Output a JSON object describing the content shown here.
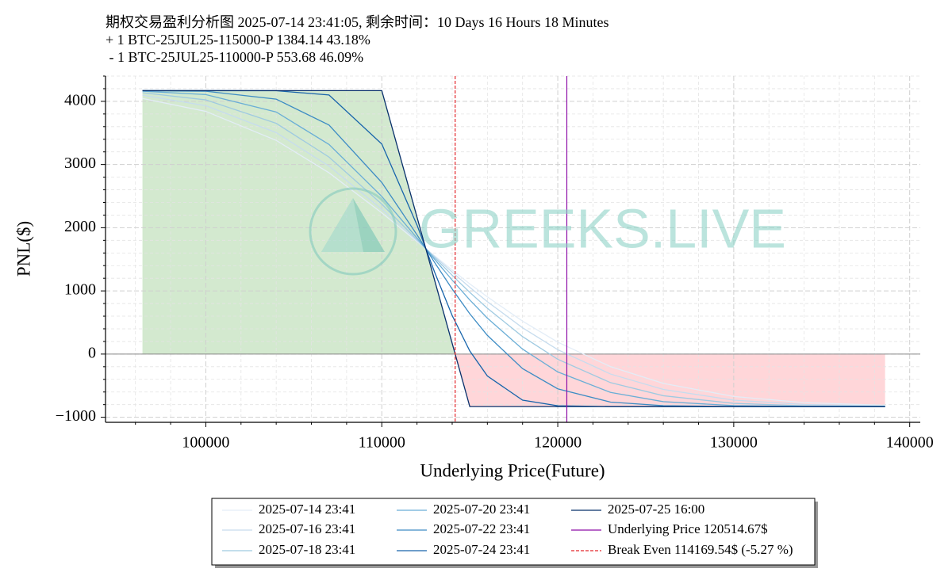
{
  "chart_data": {
    "type": "line",
    "title": [
      "期权交易盈利分析图 2025-07-14 23:41:05, 剩余时间：10 Days 16 Hours 18 Minutes",
      "+ 1 BTC-25JUL25-115000-P 1384.14 43.18%",
      " - 1 BTC-25JUL25-110000-P 553.68 46.09%"
    ],
    "x_label": "Underlying Price(Future)",
    "y_label": "PNL($)",
    "watermark": "GREEKS.LIVE",
    "x": [
      96400,
      100000,
      104000,
      107000,
      110000,
      112000,
      113000,
      114000,
      115000,
      116000,
      118000,
      120000,
      123000,
      126000,
      130000,
      134000,
      138600
    ],
    "series": [
      {
        "name": "2025-07-14 23:41",
        "color": "#e3edf7",
        "values": [
          4046,
          3841,
          3382,
          2869,
          2235,
          1781,
          1556,
          1331,
          1111,
          906,
          521,
          189,
          -199,
          -464,
          -671,
          -768,
          -811
        ]
      },
      {
        "name": "2025-07-16 23:41",
        "color": "#c6dcee",
        "values": [
          4098,
          3931,
          3505,
          2975,
          2292,
          1796,
          1544,
          1297,
          1056,
          829,
          416,
          70,
          -316,
          -560,
          -729,
          -797,
          -822
        ]
      },
      {
        "name": "2025-07-18 23:41",
        "color": "#9fcae1",
        "values": [
          4137,
          4023,
          3652,
          3118,
          2373,
          1811,
          1527,
          1247,
          977,
          726,
          277,
          -82,
          -452,
          -659,
          -780,
          -818,
          -828
        ]
      },
      {
        "name": "2025-07-20 23:41",
        "color": "#6aaed6",
        "values": [
          4161,
          4107,
          3831,
          3318,
          2495,
          1837,
          1501,
          1171,
          857,
          569,
          79,
          -282,
          -607,
          -753,
          -815,
          -828,
          -830
        ]
      },
      {
        "name": "2025-07-22 23:41",
        "color": "#3d8cc4",
        "values": [
          4169,
          4160,
          4035,
          3625,
          2716,
          1888,
          1451,
          1030,
          638,
          296,
          -230,
          -550,
          -760,
          -817,
          -829,
          -830,
          -830
        ]
      },
      {
        "name": "2025-07-24 23:41",
        "color": "#1764ab",
        "values": [
          4169,
          4169,
          4168,
          4101,
          3325,
          2043,
          1298,
          610,
          50,
          -347,
          -729,
          -818,
          -830,
          -830,
          -830,
          -830,
          -830
        ]
      },
      {
        "name": "2025-07-25 16:00",
        "color": "#08306b",
        "profit_fill": "#d3e9cf",
        "loss_fill": "#ffd6d9",
        "values": [
          4169.54,
          4169.54,
          4169.54,
          4169.54,
          4169.54,
          2169.54,
          1169.54,
          169.54,
          -830.46,
          -830.46,
          -830.46,
          -830.46,
          -830.46,
          -830.46,
          -830.46,
          -830.46,
          -830.46
        ]
      }
    ],
    "vlines": [
      {
        "name": "Underlying Price 120514.67$",
        "value": 120514.67,
        "color": "#8e0fa8",
        "dashed": false
      },
      {
        "name": "Break Even 114169.54$ (-5.27 %)",
        "value": 114169.54,
        "color": "#e3282c",
        "dashed": true
      }
    ],
    "xlim": [
      94300,
      140600
    ],
    "ylim": [
      -1080,
      4400
    ],
    "xticks": [
      100000,
      110000,
      120000,
      130000,
      140000
    ],
    "yticks": [
      {
        "value": -1000,
        "label": "−1000"
      },
      0,
      1000,
      2000,
      3000,
      4000
    ],
    "xminorticks": [
      96000,
      98000,
      102000,
      104000,
      106000,
      108000,
      112000,
      114000,
      116000,
      118000,
      122000,
      124000,
      126000,
      128000,
      132000,
      134000,
      136000,
      138000
    ],
    "yminorticks": [
      -800,
      -600,
      -400,
      -200,
      200,
      400,
      600,
      800,
      1200,
      1400,
      1600,
      1800,
      2200,
      2400,
      2600,
      2800,
      3200,
      3400,
      3600,
      3800,
      4200,
      4400
    ],
    "grid": true,
    "zero_line": true,
    "legend": "bottom"
  }
}
